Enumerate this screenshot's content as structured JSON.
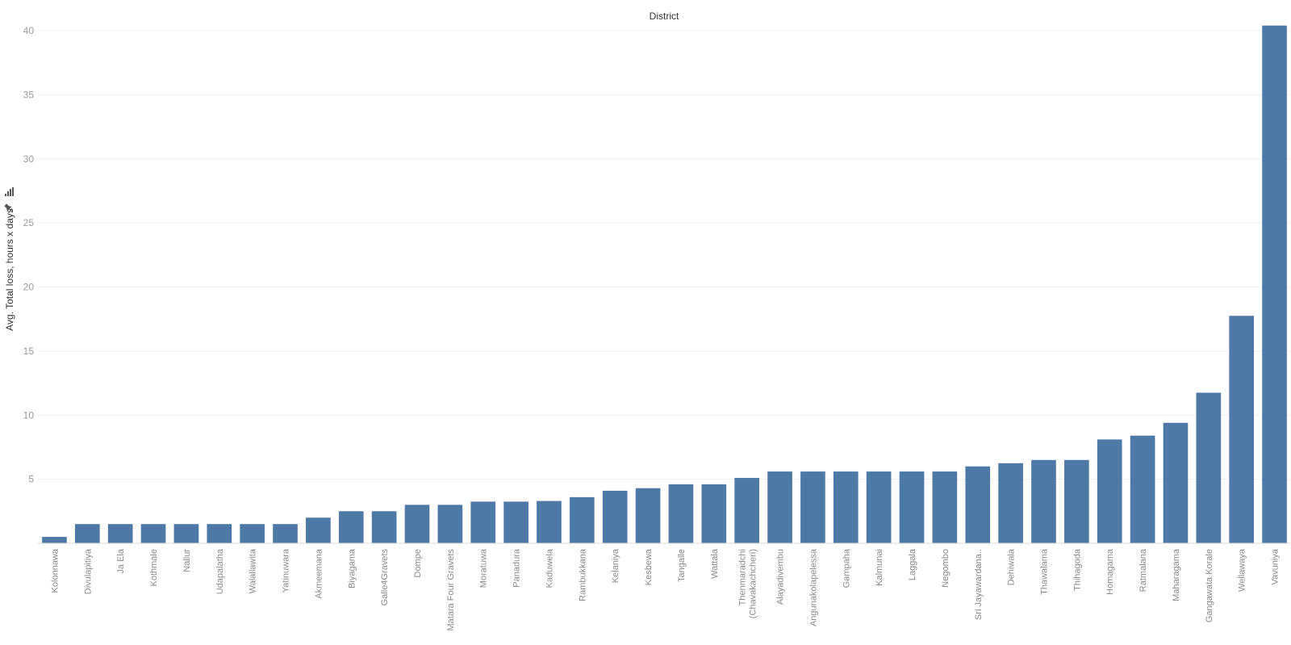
{
  "chart_data": {
    "type": "bar",
    "title": "District",
    "xlabel": "",
    "ylabel": "Avg. Total loss, hours x days",
    "ylim": [
      0,
      40
    ],
    "yticks": [
      5,
      10,
      15,
      20,
      25,
      30,
      35,
      40
    ],
    "grid": true,
    "bar_color": "#4e79a7",
    "categories": [
      "Kolonnawa",
      "Divulapitiya",
      "Ja Ela",
      "Kothmale",
      "Nallur",
      "Udapalatha",
      "Walallawita",
      "Yatinuwara",
      "Akmeemana",
      "Biyagama",
      "Galle4Gravets",
      "Dompe",
      "Matara Four Gravets",
      "Moratuwa",
      "Panadura",
      "Kaduwela",
      "Rambukkana",
      "Kelaniya",
      "Kesbewa",
      "Tangalle",
      "Wattala",
      "Thenmaradchi (Chavakachcheri)",
      "Alayadivembu",
      "Angunakolapelessa",
      "Gampaha",
      "Kalmunai",
      "Laggala",
      "Negombo",
      "Sri Jayawardana..",
      "Dehiwala",
      "Thawalama",
      "Thihagoda",
      "Homagama",
      "Ratmalana",
      "Maharagama",
      "Gangawata Korale",
      "Wellawaya",
      "Vavuniya"
    ],
    "values": [
      0.5,
      1.5,
      1.5,
      1.5,
      1.5,
      1.5,
      1.5,
      1.5,
      2,
      2.5,
      2.5,
      3,
      3,
      3.25,
      3.25,
      3.3,
      3.6,
      4.1,
      4.3,
      4.6,
      4.6,
      5.1,
      5.6,
      5.6,
      5.6,
      5.6,
      5.6,
      5.6,
      6,
      6.25,
      6.5,
      6.5,
      8.1,
      8.4,
      9.4,
      11.75,
      17.75,
      40.4
    ]
  },
  "icons": {
    "ylabel_pin": "pin-icon",
    "ylabel_sort": "sort-bars-icon"
  }
}
